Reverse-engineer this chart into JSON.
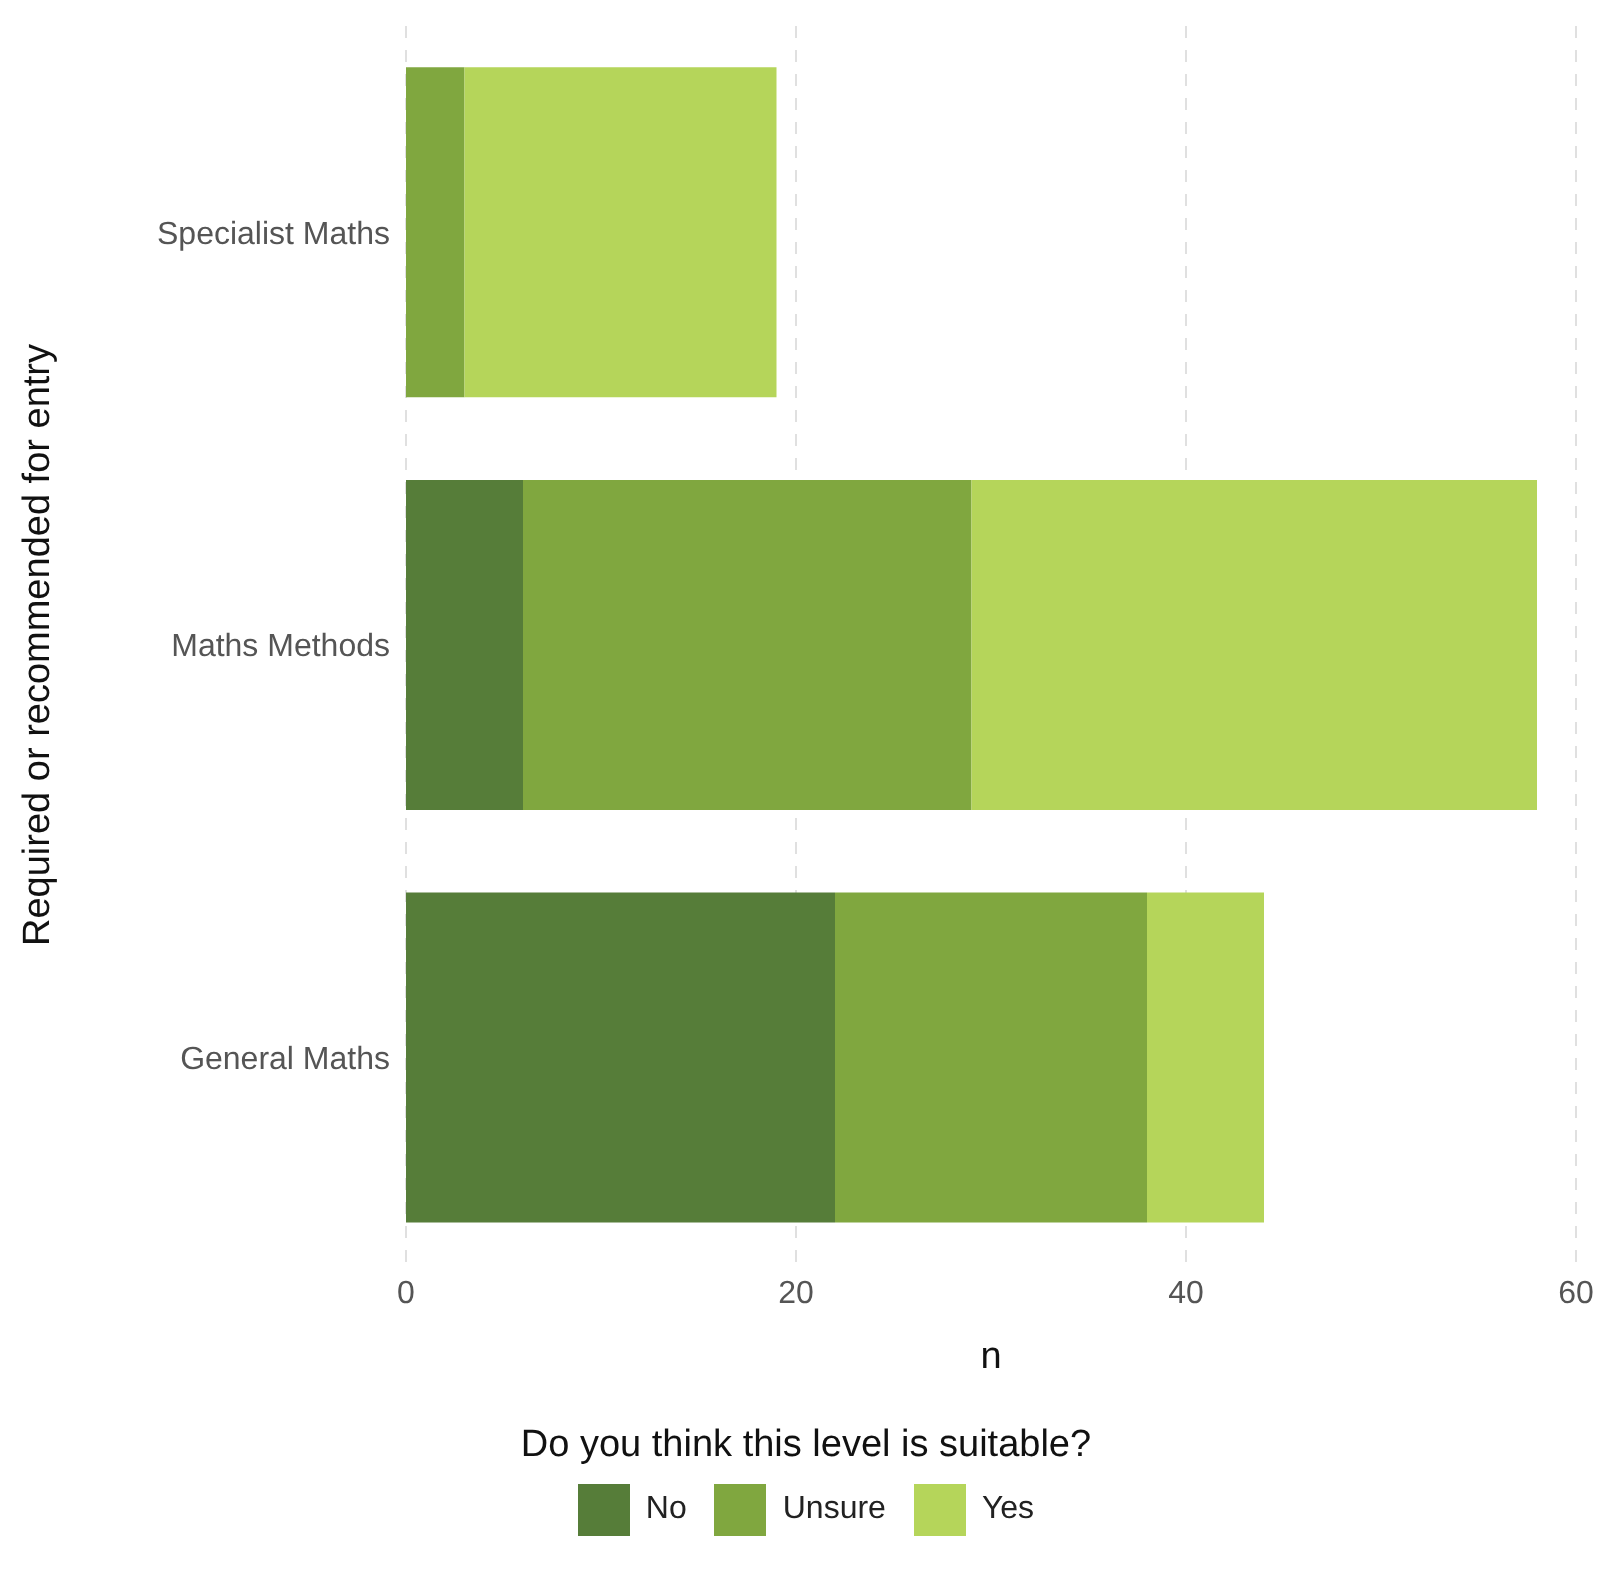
{
  "chart_data": {
    "type": "bar",
    "orientation": "horizontal",
    "stacked": true,
    "categories": [
      "Specialist Maths",
      "Maths Methods",
      "General Maths"
    ],
    "series": [
      {
        "name": "No",
        "color": "#567d39",
        "values": [
          0,
          6,
          22
        ]
      },
      {
        "name": "Unsure",
        "color": "#80a73f",
        "values": [
          3,
          23,
          16
        ]
      },
      {
        "name": "Yes",
        "color": "#b5d55a",
        "values": [
          16,
          29,
          6
        ]
      }
    ],
    "xlabel": "n",
    "ylabel": "Required or recommended for entry",
    "legend_title": "Do you think this level is suitable?",
    "xlim": [
      0,
      60
    ],
    "xticks": [
      0,
      20,
      40,
      60
    ],
    "grid": "x",
    "legend": "bottom"
  }
}
